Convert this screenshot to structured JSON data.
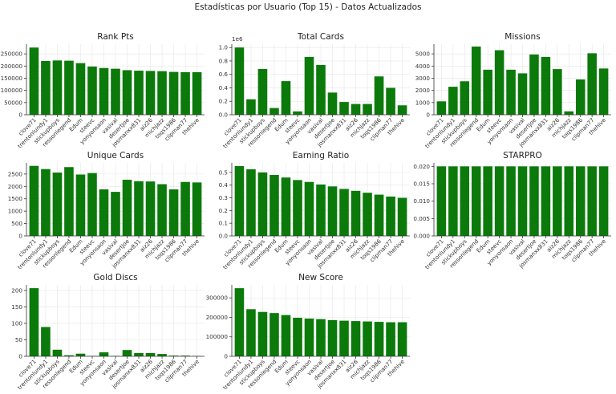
{
  "suptitle": "Estadísticas por Usuario (Top 15) - Datos Actualizados",
  "chart_data": [
    {
      "type": "bar",
      "title": "Rank Pts",
      "categories": [
        "clove71",
        "trentonlundy1",
        "stickupboys",
        "ressonlegend",
        "Edum",
        "steevc",
        "yonyonsaon",
        "vasival",
        "desertjoe",
        "josmanxx831",
        "aiz26",
        "michjazz",
        "toqs1986",
        "clipman77",
        "thehive"
      ],
      "values": [
        276000,
        221000,
        223000,
        222000,
        212000,
        198000,
        192000,
        189000,
        183000,
        181000,
        180000,
        179000,
        176000,
        175000,
        175000
      ],
      "ylim": [
        0,
        290000
      ],
      "yticks": [
        0,
        50000,
        100000,
        150000,
        200000,
        250000
      ],
      "yticklabels": [
        "0",
        "50000",
        "100000",
        "150000",
        "200000",
        "250000"
      ],
      "offset_text": "",
      "grid": true
    },
    {
      "type": "bar",
      "title": "Total Cards",
      "categories": [
        "clove71",
        "trentonlundy1",
        "stickupboys",
        "ressonlegend",
        "Edum",
        "steevc",
        "yonyonsaon",
        "vasival",
        "desertjoe",
        "josmanxx831",
        "aiz26",
        "michjazz",
        "toqs1986",
        "clipman77",
        "thehive"
      ],
      "values": [
        1000000,
        230000,
        680000,
        100000,
        500000,
        50000,
        860000,
        740000,
        330000,
        190000,
        160000,
        160000,
        570000,
        400000,
        140000
      ],
      "ylim": [
        0,
        1050000
      ],
      "yticks": [
        0,
        200000,
        400000,
        600000,
        800000,
        1000000
      ],
      "yticklabels": [
        "0.0",
        "0.2",
        "0.4",
        "0.6",
        "0.8",
        "1.0"
      ],
      "offset_text": "1e6",
      "grid": true
    },
    {
      "type": "bar",
      "title": "Missions",
      "categories": [
        "clove71",
        "trentonlundy1",
        "stickupboys",
        "ressonlegend",
        "Edum",
        "steevc",
        "yonyonsaon",
        "vasival",
        "desertjoe",
        "josmanxx831",
        "aiz26",
        "michjazz",
        "toqs1986",
        "clipman77",
        "thehive"
      ],
      "values": [
        1100,
        2300,
        2750,
        5600,
        3700,
        5300,
        3700,
        3400,
        4950,
        4750,
        3750,
        280,
        2900,
        5050,
        3800
      ],
      "ylim": [
        0,
        5800
      ],
      "yticks": [
        0,
        1000,
        2000,
        3000,
        4000,
        5000
      ],
      "yticklabels": [
        "0",
        "1000",
        "2000",
        "3000",
        "4000",
        "5000"
      ],
      "offset_text": "",
      "grid": true
    },
    {
      "type": "bar",
      "title": "Unique Cards",
      "categories": [
        "clove71",
        "trentonlundy1",
        "stickupboys",
        "ressonlegend",
        "Edum",
        "steevc",
        "yonyonsaon",
        "vasival",
        "desertjoe",
        "josmanxx831",
        "aiz26",
        "michjazz",
        "toqs1986",
        "clipman77",
        "thehive"
      ],
      "values": [
        2830,
        2700,
        2560,
        2780,
        2480,
        2540,
        1880,
        1780,
        2270,
        2210,
        2200,
        2090,
        1880,
        2180,
        2160
      ],
      "ylim": [
        0,
        2950
      ],
      "yticks": [
        0,
        500,
        1000,
        1500,
        2000,
        2500
      ],
      "yticklabels": [
        "0",
        "500",
        "1000",
        "1500",
        "2000",
        "2500"
      ],
      "offset_text": "",
      "grid": true
    },
    {
      "type": "bar",
      "title": "Earning Ratio",
      "categories": [
        "clove71",
        "trentonlundy1",
        "stickupboys",
        "ressonlegend",
        "Edum",
        "steevc",
        "yonyonsaon",
        "vasival",
        "desertjoe",
        "josmanxx831",
        "aiz26",
        "michjazz",
        "toqs1986",
        "clipman77",
        "thehive"
      ],
      "values": [
        0.55,
        0.525,
        0.5,
        0.48,
        0.46,
        0.44,
        0.425,
        0.405,
        0.39,
        0.37,
        0.355,
        0.34,
        0.325,
        0.31,
        0.3
      ],
      "ylim": [
        0,
        0.575
      ],
      "yticks": [
        0,
        0.1,
        0.2,
        0.3,
        0.4,
        0.5
      ],
      "yticklabels": [
        "0.0",
        "0.1",
        "0.2",
        "0.3",
        "0.4",
        "0.5"
      ],
      "offset_text": "",
      "grid": true
    },
    {
      "type": "bar",
      "title": "STARPRO",
      "categories": [
        "clove71",
        "trentonlundy1",
        "stickupboys",
        "ressonlegend",
        "Edum",
        "steevc",
        "yonyonsaon",
        "vasival",
        "desertjoe",
        "josmanxx831",
        "aiz26",
        "michjazz",
        "toqs1986",
        "clipman77",
        "thehive"
      ],
      "values": [
        0.02,
        0.02,
        0.02,
        0.02,
        0.02,
        0.02,
        0.02,
        0.02,
        0.02,
        0.02,
        0.02,
        0.02,
        0.02,
        0.02,
        0.02
      ],
      "ylim": [
        0,
        0.021
      ],
      "yticks": [
        0,
        0.005,
        0.01,
        0.015,
        0.02
      ],
      "yticklabels": [
        "0.000",
        "0.005",
        "0.010",
        "0.015",
        "0.020"
      ],
      "offset_text": "",
      "grid": true
    },
    {
      "type": "bar",
      "title": "Gold Discs",
      "categories": [
        "clove71",
        "trentonlundy1",
        "stickupboys",
        "ressonlegend",
        "Edum",
        "steevc",
        "yonyonsaon",
        "vasival",
        "desertjoe",
        "josmanxx831",
        "aiz26",
        "michjazz",
        "toqs1986",
        "clipman77",
        "thehive"
      ],
      "values": [
        207,
        89,
        20,
        3,
        8,
        1,
        12,
        1,
        19,
        10,
        10,
        7,
        2,
        2,
        1
      ],
      "ylim": [
        0,
        217
      ],
      "yticks": [
        0,
        50,
        100,
        150,
        200
      ],
      "yticklabels": [
        "0",
        "50",
        "100",
        "150",
        "200"
      ],
      "offset_text": "",
      "grid": true
    },
    {
      "type": "bar",
      "title": "New Score",
      "categories": [
        "clove71",
        "trentonlundy1",
        "stickupboys",
        "ressonlegend",
        "Edum",
        "steevc",
        "yonyonsaon",
        "vasival",
        "desertjoe",
        "josmanxx831",
        "aiz26",
        "michjazz",
        "toqs1986",
        "clipman77",
        "thehive"
      ],
      "values": [
        350000,
        242000,
        228000,
        222000,
        212000,
        198000,
        194000,
        191000,
        186000,
        183000,
        181000,
        179000,
        177000,
        175000,
        175000
      ],
      "ylim": [
        0,
        367000
      ],
      "yticks": [
        0,
        100000,
        200000,
        300000
      ],
      "yticklabels": [
        "0",
        "100000",
        "200000",
        "300000"
      ],
      "offset_text": "",
      "grid": true
    }
  ]
}
